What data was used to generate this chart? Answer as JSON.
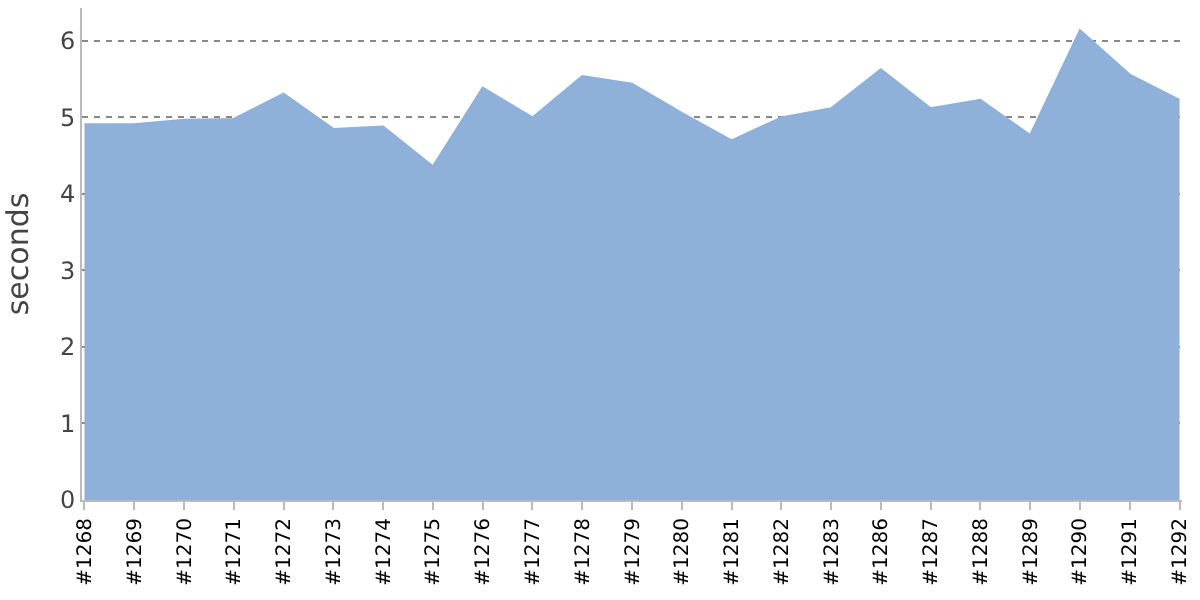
{
  "chart_data": {
    "type": "area",
    "ylabel": "seconds",
    "categories": [
      "#1268",
      "#1269",
      "#1270",
      "#1271",
      "#1272",
      "#1273",
      "#1274",
      "#1275",
      "#1276",
      "#1277",
      "#1278",
      "#1279",
      "#1280",
      "#1281",
      "#1282",
      "#1283",
      "#1286",
      "#1287",
      "#1288",
      "#1289",
      "#1290",
      "#1291",
      "#1292"
    ],
    "series": [
      {
        "color": "#8eb0d9",
        "values": [
          4.91,
          4.91,
          4.97,
          4.98,
          5.31,
          4.85,
          4.88,
          4.36,
          5.39,
          5.0,
          5.54,
          5.44,
          5.06,
          4.7,
          5.0,
          5.12,
          5.63,
          5.12,
          5.23,
          4.77,
          6.14,
          5.56,
          5.23
        ]
      }
    ],
    "ylim": [
      0,
      6.43
    ],
    "yticks": [
      0,
      1,
      2,
      3,
      4,
      5,
      6
    ],
    "grid": "y"
  }
}
